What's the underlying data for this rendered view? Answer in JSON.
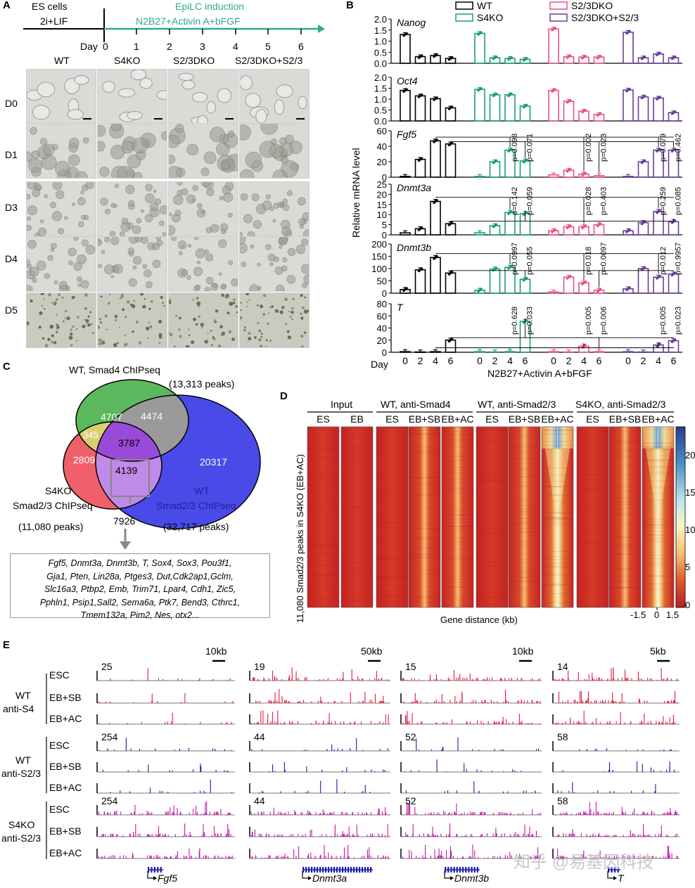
{
  "panels": {
    "A": "A",
    "B": "B",
    "C": "C",
    "D": "D",
    "E": "E"
  },
  "colors": {
    "wt": "#000000",
    "s4ko": "#1a9e6b",
    "s23dko": "#e8508a",
    "s23dko_s23": "#6a3d9a",
    "teal": "#2cab8d",
    "venn_green": "#4caf50",
    "venn_blue": "#3b3be8",
    "venn_red": "#f0535a",
    "track_red": "#e8193c",
    "track_blue": "#1a1aa8",
    "track_magenta": "#c21aa8"
  },
  "panelA": {
    "esc_label": "ES cells",
    "esc_medium": "2i+LIF",
    "epi_label": "EpiLC induction",
    "epi_medium": "N2B27+Activin A+bFGF",
    "day_label": "Day",
    "days": [
      "0",
      "1",
      "2",
      "3",
      "4",
      "5",
      "6"
    ],
    "columns": [
      "WT",
      "S4KO",
      "S2/3DKO",
      "S2/3DKO+S2/3"
    ],
    "rows": [
      "D0",
      "D1",
      "D3",
      "D4",
      "D5"
    ]
  },
  "panelB": {
    "legend": [
      "WT",
      "S4KO",
      "S2/3DKO",
      "S2/3DKO+S2/3"
    ],
    "ylabel": "Relative mRNA level",
    "day_label": "Day",
    "day_ticks": [
      "0",
      "2",
      "4",
      "6"
    ],
    "xlabel": "N2B27+Activin A+bFGF"
  },
  "chart_data": [
    {
      "type": "bar",
      "title": "Nanog",
      "ylim": [
        0,
        2.0
      ],
      "yticks": [
        "2.0",
        "1.5",
        "1.0",
        "0.5",
        "0.0"
      ],
      "categories": [
        "0",
        "2",
        "4",
        "6"
      ],
      "series": [
        {
          "name": "WT",
          "values": [
            1.3,
            0.3,
            0.35,
            0.22
          ]
        },
        {
          "name": "S4KO",
          "values": [
            1.35,
            0.25,
            0.22,
            0.18
          ]
        },
        {
          "name": "S2/3DKO",
          "values": [
            1.55,
            0.3,
            0.28,
            0.28
          ]
        },
        {
          "name": "S2/3DKO+S2/3",
          "values": [
            1.4,
            0.25,
            0.42,
            0.25
          ]
        }
      ],
      "pvalues": []
    },
    {
      "type": "bar",
      "title": "Oct4",
      "ylim": [
        0,
        2.0
      ],
      "yticks": [
        "2.0",
        "1.5",
        "1.0",
        "0.5",
        "0.0"
      ],
      "categories": [
        "0",
        "2",
        "4",
        "6"
      ],
      "series": [
        {
          "name": "WT",
          "values": [
            1.4,
            1.15,
            1.02,
            0.6
          ]
        },
        {
          "name": "S4KO",
          "values": [
            1.45,
            1.2,
            1.2,
            0.68
          ]
        },
        {
          "name": "S2/3DKO",
          "values": [
            1.4,
            0.9,
            0.45,
            0.3
          ]
        },
        {
          "name": "S2/3DKO+S2/3",
          "values": [
            1.42,
            1.1,
            1.05,
            0.38
          ]
        }
      ],
      "pvalues": []
    },
    {
      "type": "bar",
      "title": "Fgf5",
      "ylim": [
        0,
        60
      ],
      "yticks": [
        "60",
        "40",
        "20",
        "0"
      ],
      "categories": [
        "0",
        "2",
        "4",
        "6"
      ],
      "series": [
        {
          "name": "WT",
          "values": [
            1,
            23,
            47,
            43
          ]
        },
        {
          "name": "S4KO",
          "values": [
            1,
            20,
            35,
            21
          ]
        },
        {
          "name": "S2/3DKO",
          "values": [
            3,
            9,
            4,
            2
          ]
        },
        {
          "name": "S2/3DKO+S2/3",
          "values": [
            1,
            20,
            35,
            35
          ]
        }
      ],
      "pvalues": [
        {
          "group": 1,
          "day": 2,
          "label": "p=0.098"
        },
        {
          "group": 1,
          "day": 3,
          "label": "p=0.071"
        },
        {
          "group": 2,
          "day": 2,
          "label": "p=0.002"
        },
        {
          "group": 2,
          "day": 3,
          "label": "p=0.023"
        },
        {
          "group": 3,
          "day": 2,
          "label": "p=0.079"
        },
        {
          "group": 3,
          "day": 3,
          "label": "p=0.462"
        }
      ]
    },
    {
      "type": "bar",
      "title": "Dnmt3a",
      "ylim": [
        0,
        25
      ],
      "yticks": [
        "25",
        "20",
        "15",
        "10",
        "5",
        "0"
      ],
      "categories": [
        "0",
        "2",
        "4",
        "6"
      ],
      "series": [
        {
          "name": "WT",
          "values": [
            1,
            3,
            16.5,
            5.5
          ]
        },
        {
          "name": "S4KO",
          "values": [
            1,
            4.5,
            11,
            10.5
          ]
        },
        {
          "name": "S2/3DKO",
          "values": [
            2,
            4,
            4,
            5
          ]
        },
        {
          "name": "S2/3DKO+S2/3",
          "values": [
            2,
            6,
            11.5,
            6.5
          ]
        }
      ],
      "pvalues": [
        {
          "group": 1,
          "day": 2,
          "label": "p=0.142"
        },
        {
          "group": 1,
          "day": 3,
          "label": "p=0.059"
        },
        {
          "group": 2,
          "day": 2,
          "label": "p=0.028"
        },
        {
          "group": 2,
          "day": 3,
          "label": "p=0.403"
        },
        {
          "group": 3,
          "day": 2,
          "label": "p=0.259"
        },
        {
          "group": 3,
          "day": 3,
          "label": "p=0.085"
        }
      ]
    },
    {
      "type": "bar",
      "title": "Dnmt3b",
      "ylim": [
        0,
        200
      ],
      "yticks": [
        "200",
        "150",
        "100",
        "50",
        "0"
      ],
      "categories": [
        "0",
        "2",
        "4",
        "6"
      ],
      "series": [
        {
          "name": "WT",
          "values": [
            15,
            95,
            145,
            82
          ]
        },
        {
          "name": "S4KO",
          "values": [
            12,
            98,
            105,
            57
          ]
        },
        {
          "name": "S2/3DKO",
          "values": [
            5,
            65,
            42,
            12
          ]
        },
        {
          "name": "S2/3DKO+S2/3",
          "values": [
            18,
            100,
            65,
            78
          ]
        }
      ],
      "pvalues": [
        {
          "group": 1,
          "day": 2,
          "label": "p=0.0997"
        },
        {
          "group": 1,
          "day": 3,
          "label": "p=0.055"
        },
        {
          "group": 2,
          "day": 2,
          "label": "p=0.018"
        },
        {
          "group": 2,
          "day": 3,
          "label": "p=0.0097"
        },
        {
          "group": 3,
          "day": 2,
          "label": "p=0.012"
        },
        {
          "group": 3,
          "day": 3,
          "label": "p=0.9957"
        }
      ]
    },
    {
      "type": "bar",
      "title": "T",
      "ylim": [
        0,
        80
      ],
      "yticks": [
        "80",
        "60",
        "40",
        "20",
        "0"
      ],
      "categories": [
        "0",
        "2",
        "4",
        "6"
      ],
      "series": [
        {
          "name": "WT",
          "values": [
            1,
            0.5,
            1,
            20
          ]
        },
        {
          "name": "S4KO",
          "values": [
            1,
            0.5,
            1,
            51
          ]
        },
        {
          "name": "S2/3DKO",
          "values": [
            1,
            0.5,
            10,
            1
          ]
        },
        {
          "name": "S2/3DKO+S2/3",
          "values": [
            1,
            0.5,
            12,
            19
          ]
        }
      ],
      "pvalues": [
        {
          "group": 1,
          "day": 2,
          "label": "p=0.628"
        },
        {
          "group": 1,
          "day": 3,
          "label": "p=0.033"
        },
        {
          "group": 2,
          "day": 2,
          "label": "p=0.005"
        },
        {
          "group": 2,
          "day": 3,
          "label": "p=0.006"
        },
        {
          "group": 3,
          "day": 2,
          "label": "p=0.005"
        },
        {
          "group": 3,
          "day": 3,
          "label": "p=0.023"
        }
      ]
    }
  ],
  "panelC": {
    "smad4_title": "WT, Smad4 ChIPseq",
    "smad4_peaks": "(13,313 peaks)",
    "s4ko_title1": "S4KO",
    "s4ko_title2": "Smad2/3 ChIPseq",
    "s4ko_peaks": "(11,080 peaks)",
    "wt_title1": "WT",
    "wt_title2": "Smad2/3 ChIPseq",
    "wt_peaks": "(32,717 peaks)",
    "n4707": "4707",
    "n4474": "4474",
    "n345": "345",
    "n3787": "3787",
    "n2809": "2809",
    "n4139": "4139",
    "n20317": "20317",
    "n7926": "7926",
    "genes": [
      "Fgf5, Dnmt3a, Dnmt3b, T, Sox4, Sox3, Pou3f1,",
      "Gja1, Pten, Lin28a, Ptges3, Dut,Cdk2ap1,Gclm,",
      "Slc16a3, Ptbp2, Emb, Trim71, Lpar4, Cdh1, Zic5,",
      "Pphln1, Psip1,Sall2, Sema6a, Ptk7, Bend3, Cthrc1,",
      "Tmem132a, Pim2, Nes, otx2..."
    ]
  },
  "panelD": {
    "groups": [
      "Input",
      "WT, anti-Smad4",
      "WT, anti-Smad2/3",
      "S4KO, anti-Smad2/3"
    ],
    "columns": [
      "ES",
      "EB",
      "ES",
      "EB+SB",
      "EB+AC",
      "ES",
      "EB+SB",
      "EB+AC",
      "ES",
      "EB+SB",
      "EB+AC"
    ],
    "ylabel": "11,080 Smad2/3 peaks in S4KO (EB+AC)",
    "xlabel": "Gene distance (kb)",
    "xticks": [
      "-1.5",
      "0",
      "1.5"
    ],
    "scale": [
      "20",
      "15",
      "10",
      "5",
      "0"
    ]
  },
  "panelE": {
    "group_labels": [
      [
        "WT",
        "anti-S4"
      ],
      [
        "WT",
        "anti-S2/3"
      ],
      [
        "S4KO",
        "anti-S2/3"
      ]
    ],
    "track_labels": [
      "ESC",
      "EB+SB",
      "EB+AC"
    ],
    "loci": [
      {
        "gene": "Fgf5",
        "scale": "10kb",
        "ranges": [
          "25",
          "254",
          "254"
        ]
      },
      {
        "gene": "Dnmt3a",
        "scale": "50kb",
        "ranges": [
          "19",
          "44",
          "44"
        ]
      },
      {
        "gene": "Dnmt3b",
        "scale": "10kb",
        "ranges": [
          "15",
          "52",
          "52"
        ]
      },
      {
        "gene": "T",
        "scale": "5kb",
        "ranges": [
          "14",
          "58",
          "58"
        ]
      }
    ]
  },
  "watermark": "知乎 @易基因科技"
}
